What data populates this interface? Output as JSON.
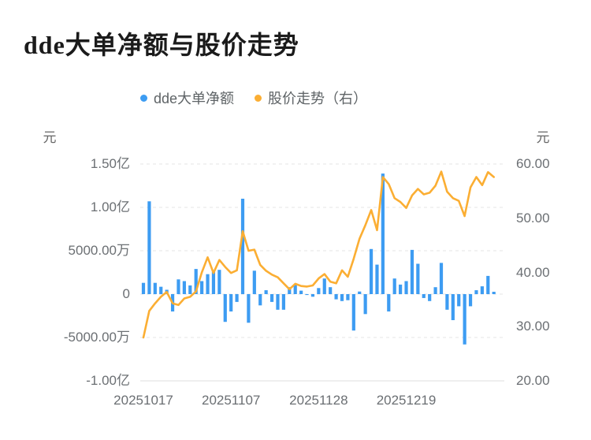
{
  "title": "dde大单净额与股价走势",
  "legend": [
    {
      "label": "dde大单净额",
      "color": "#3D9CF2"
    },
    {
      "label": "股价走势（右）",
      "color": "#FBAE33"
    }
  ],
  "colors": {
    "bar": "#3D9CF2",
    "line": "#FBAE33",
    "gridline": "#e4e4e4",
    "axis_line": "#dcdcdc",
    "tick_text": "#6b6f73",
    "title_text": "#1b1b1b"
  },
  "chart_data": {
    "type": "bar+line",
    "title": "dde大单净额与股价走势",
    "left_axis": {
      "unit": "元",
      "tick_labels": [
        "1.50亿",
        "1.00亿",
        "5000.00万",
        "0",
        "-5000.00万",
        "-1.00亿"
      ],
      "range_wan": [
        -10000,
        15000
      ],
      "applies_to": "dde大单净额"
    },
    "right_axis": {
      "unit": "元",
      "tick_labels": [
        "60.00",
        "50.00",
        "40.00",
        "30.00",
        "20.00"
      ],
      "range": [
        20,
        60
      ],
      "applies_to": "股价走势（右）"
    },
    "x_axis": {
      "visible_labels": [
        "20251017",
        "20251107",
        "20251128",
        "20251219"
      ],
      "visible_label_indices": [
        0,
        15,
        30,
        45
      ]
    },
    "grid": "horizontal dashed lines, bottom axis solid",
    "legend_position": "top-center",
    "series": [
      {
        "name": "dde大单净额",
        "type": "bar",
        "axis": "left",
        "unit": "万元",
        "values": [
          1300,
          10700,
          1300,
          850,
          500,
          -2000,
          1700,
          1500,
          1000,
          2900,
          1500,
          2300,
          2600,
          2800,
          -3200,
          -2000,
          -900,
          11000,
          -3300,
          2700,
          -1300,
          450,
          -900,
          -1800,
          -1800,
          800,
          1100,
          400,
          -100,
          -300,
          700,
          1800,
          800,
          -600,
          -800,
          -700,
          -4200,
          300,
          -2300,
          5200,
          3400,
          13900,
          -2000,
          1800,
          1100,
          1500,
          5100,
          3500,
          -450,
          -800,
          800,
          3600,
          -1800,
          -3000,
          -1400,
          -5800,
          -1400,
          450,
          900,
          2100,
          270
        ]
      },
      {
        "name": "股价走势（右）",
        "type": "line",
        "axis": "right",
        "unit": "元",
        "values": [
          28.0,
          32.9,
          34.3,
          35.5,
          36.4,
          34.3,
          34.0,
          35.2,
          35.5,
          36.5,
          40.0,
          42.8,
          39.9,
          42.3,
          41.0,
          39.9,
          40.4,
          47.6,
          44.0,
          44.2,
          41.4,
          40.3,
          39.6,
          39.1,
          38.0,
          36.9,
          37.9,
          37.5,
          37.4,
          37.6,
          38.9,
          39.7,
          38.3,
          38.0,
          40.4,
          39.2,
          42.5,
          46.2,
          48.7,
          51.5,
          47.8,
          57.6,
          56.3,
          53.7,
          53.0,
          51.9,
          54.2,
          55.4,
          54.4,
          54.7,
          56.0,
          58.6,
          54.9,
          53.7,
          53.2,
          50.4,
          55.7,
          57.6,
          56.1,
          58.5,
          57.6
        ]
      }
    ]
  }
}
